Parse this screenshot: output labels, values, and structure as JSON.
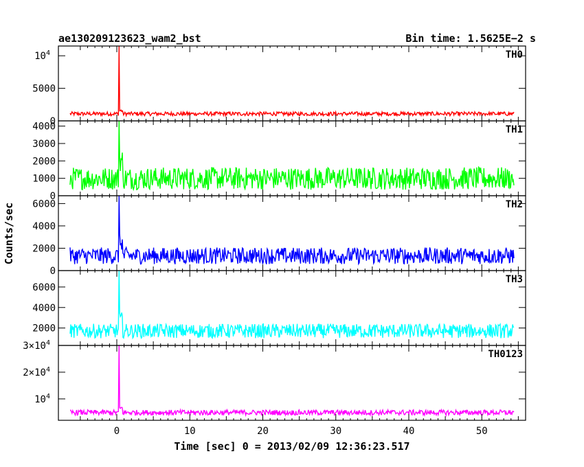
{
  "header": {
    "title": "ae130209123623_wam2_bst",
    "bin_time": "Bin time: 1.5625E−2 s"
  },
  "axes": {
    "xlabel": "Time [sec] 0 = 2013/02/09 12:36:23.517",
    "ylabel": "Counts/sec"
  },
  "chart_data": {
    "type": "line",
    "xlim": [
      -8,
      56
    ],
    "x_ticks": [
      0,
      10,
      20,
      30,
      40,
      50
    ],
    "x_range_data": [
      -8,
      56
    ],
    "burst_time": 0.3,
    "panels": [
      {
        "name": "TH0",
        "color": "#ff0000",
        "ylim": [
          0,
          11500
        ],
        "y_ticks": [
          {
            "v": 0,
            "t": "0"
          },
          {
            "v": 5000,
            "t": "5000"
          },
          {
            "v": 10000,
            "t": "10",
            "sup": "4"
          }
        ],
        "baseline": 1000,
        "noise": 600,
        "peak": 11500
      },
      {
        "name": "TH1",
        "color": "#00ff00",
        "ylim": [
          0,
          4300
        ],
        "y_ticks": [
          {
            "v": 0,
            "t": "0"
          },
          {
            "v": 1000,
            "t": "1000"
          },
          {
            "v": 2000,
            "t": "2000"
          },
          {
            "v": 3000,
            "t": "3000"
          },
          {
            "v": 4000,
            "t": "4000"
          }
        ],
        "baseline": 800,
        "noise": 1300,
        "peak": 4300
      },
      {
        "name": "TH2",
        "color": "#0000ff",
        "ylim": [
          0,
          6700
        ],
        "y_ticks": [
          {
            "v": 0,
            "t": "0"
          },
          {
            "v": 2000,
            "t": "2000"
          },
          {
            "v": 4000,
            "t": "4000"
          },
          {
            "v": 6000,
            "t": "6000"
          }
        ],
        "baseline": 1100,
        "noise": 1500,
        "peak": 6700
      },
      {
        "name": "TH3",
        "color": "#00ffff",
        "ylim": [
          0,
          7600
        ],
        "y_ticks": [
          {
            "v": 2000,
            "t": "2000"
          },
          {
            "v": 4000,
            "t": "4000"
          },
          {
            "v": 6000,
            "t": "6000"
          }
        ],
        "baseline": 1500,
        "noise": 1400,
        "peak": 7600,
        "ymin_view": 300
      },
      {
        "name": "TH0123",
        "color": "#ff00ff",
        "ylim": [
          0,
          30000
        ],
        "y_ticks": [
          {
            "v": 10000,
            "t": "10",
            "sup": "4"
          },
          {
            "v": 20000,
            "t": "2×10",
            "sup": "4"
          },
          {
            "v": 30000,
            "t": "3×10",
            "sup": "4"
          }
        ],
        "baseline": 4600,
        "noise": 2000,
        "peak": 30000,
        "ymin_view": 2000
      }
    ]
  }
}
